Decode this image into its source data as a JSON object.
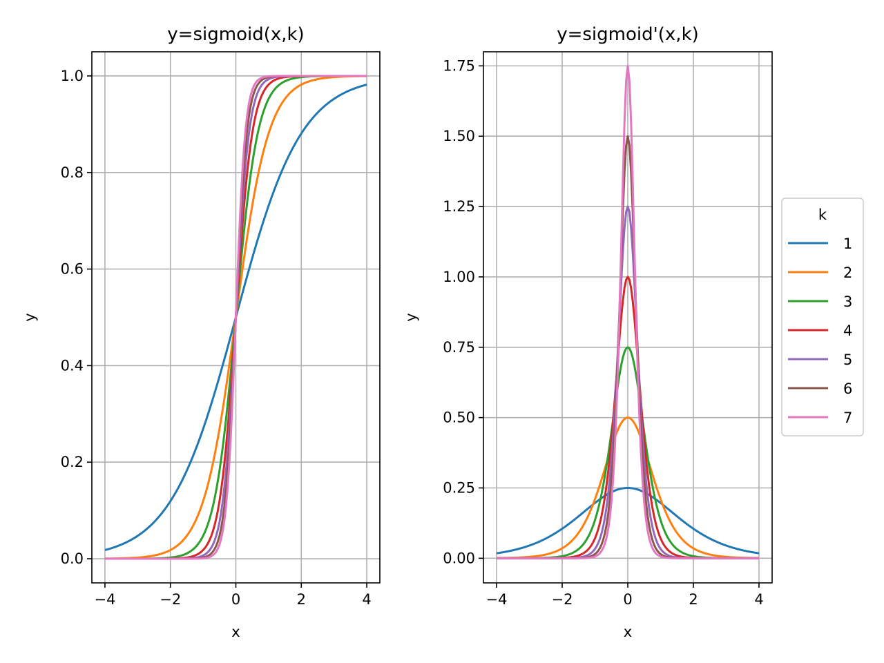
{
  "chart_data": [
    {
      "type": "line",
      "title": "y=sigmoid(x,k)",
      "xlabel": "x",
      "ylabel": "y",
      "xlim": [
        -4.4,
        4.4
      ],
      "ylim": [
        -0.05,
        1.05
      ],
      "xticks": [
        -4,
        -2,
        0,
        2,
        4
      ],
      "xtick_labels": [
        "−4",
        "−2",
        "0",
        "2",
        "4"
      ],
      "yticks": [
        0.0,
        0.2,
        0.4,
        0.6,
        0.8,
        1.0
      ],
      "ytick_labels": [
        "0.0",
        "0.2",
        "0.4",
        "0.6",
        "0.8",
        "1.0"
      ],
      "grid": true,
      "function": "sigmoid",
      "x_domain": [
        -4,
        4
      ],
      "series": [
        {
          "name": "1",
          "k": 1,
          "color": "#1f77b4"
        },
        {
          "name": "2",
          "k": 2,
          "color": "#ff7f0e"
        },
        {
          "name": "3",
          "k": 3,
          "color": "#2ca02c"
        },
        {
          "name": "4",
          "k": 4,
          "color": "#d62728"
        },
        {
          "name": "5",
          "k": 5,
          "color": "#9467bd"
        },
        {
          "name": "6",
          "k": 6,
          "color": "#8c564b"
        },
        {
          "name": "7",
          "k": 7,
          "color": "#e377c2"
        }
      ]
    },
    {
      "type": "line",
      "title": "y=sigmoid'(x,k)",
      "xlabel": "x",
      "ylabel": "y",
      "xlim": [
        -4.4,
        4.4
      ],
      "ylim": [
        -0.0875,
        1.8
      ],
      "xticks": [
        -4,
        -2,
        0,
        2,
        4
      ],
      "xtick_labels": [
        "−4",
        "−2",
        "0",
        "2",
        "4"
      ],
      "yticks": [
        0.0,
        0.25,
        0.5,
        0.75,
        1.0,
        1.25,
        1.5,
        1.75
      ],
      "ytick_labels": [
        "0.00",
        "0.25",
        "0.50",
        "0.75",
        "1.00",
        "1.25",
        "1.50",
        "1.75"
      ],
      "grid": true,
      "function": "sigmoid_derivative",
      "x_domain": [
        -4,
        4
      ],
      "series": [
        {
          "name": "1",
          "k": 1,
          "color": "#1f77b4"
        },
        {
          "name": "2",
          "k": 2,
          "color": "#ff7f0e"
        },
        {
          "name": "3",
          "k": 3,
          "color": "#2ca02c"
        },
        {
          "name": "4",
          "k": 4,
          "color": "#d62728"
        },
        {
          "name": "5",
          "k": 5,
          "color": "#9467bd"
        },
        {
          "name": "6",
          "k": 6,
          "color": "#8c564b"
        },
        {
          "name": "7",
          "k": 7,
          "color": "#e377c2"
        }
      ]
    }
  ],
  "legend": {
    "title": "k",
    "placement": "right",
    "entries": [
      {
        "label": "1",
        "color": "#1f77b4"
      },
      {
        "label": "2",
        "color": "#ff7f0e"
      },
      {
        "label": "3",
        "color": "#2ca02c"
      },
      {
        "label": "4",
        "color": "#d62728"
      },
      {
        "label": "5",
        "color": "#9467bd"
      },
      {
        "label": "6",
        "color": "#8c564b"
      },
      {
        "label": "7",
        "color": "#e377c2"
      }
    ]
  }
}
